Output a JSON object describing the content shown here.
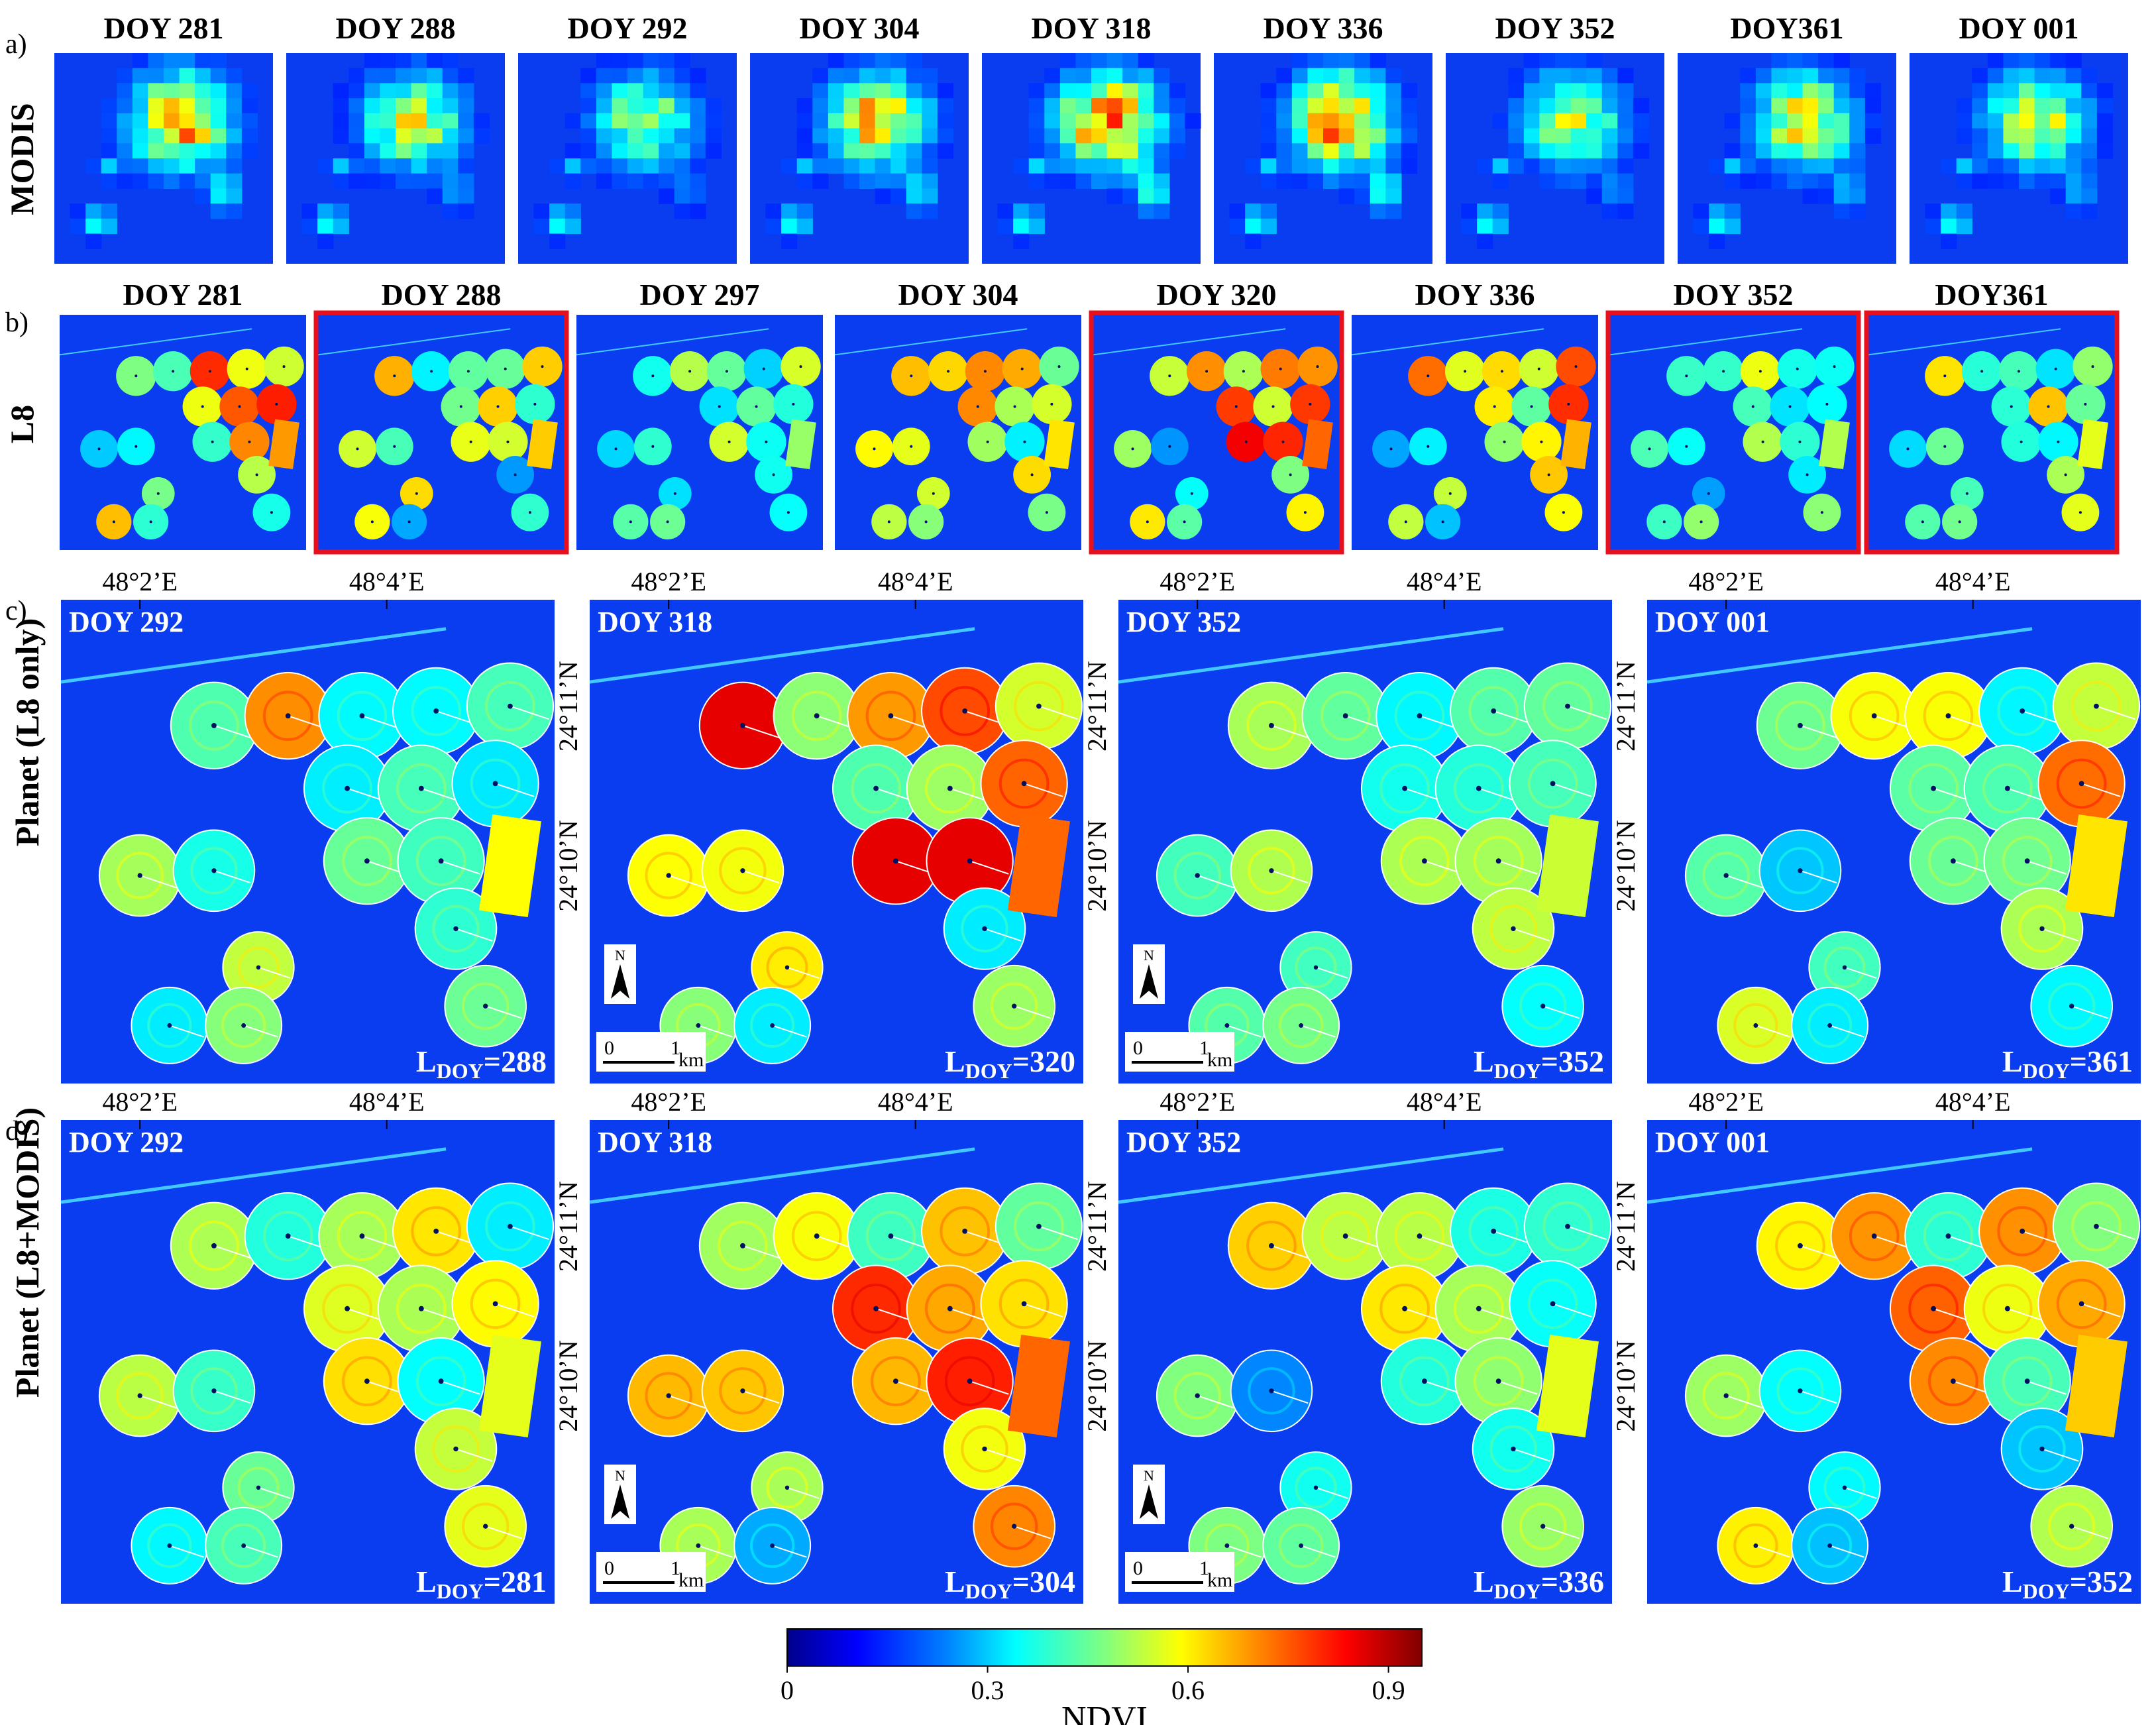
{
  "rows": {
    "a": {
      "label": "a)",
      "side_label": "MODIS",
      "panels": [
        {
          "title": "DOY 281",
          "highlighted": false,
          "intensity": 0.75
        },
        {
          "title": "DOY 288",
          "highlighted": false,
          "intensity": 0.45
        },
        {
          "title": "DOY 292",
          "highlighted": false,
          "intensity": 0.35
        },
        {
          "title": "DOY 304",
          "highlighted": false,
          "intensity": 0.7
        },
        {
          "title": "DOY 318",
          "highlighted": false,
          "intensity": 0.9
        },
        {
          "title": "DOY 336",
          "highlighted": false,
          "intensity": 0.85
        },
        {
          "title": "DOY 352",
          "highlighted": false,
          "intensity": 0.4
        },
        {
          "title": "DOY361",
          "highlighted": false,
          "intensity": 0.55
        },
        {
          "title": "DOY 001",
          "highlighted": false,
          "intensity": 0.5
        }
      ]
    },
    "b": {
      "label": "b)",
      "side_label": "L8",
      "panels": [
        {
          "title": "DOY 281",
          "highlighted": false,
          "intensity": 0.85
        },
        {
          "title": "DOY 288",
          "highlighted": true,
          "intensity": 0.75
        },
        {
          "title": "DOY 297",
          "highlighted": false,
          "intensity": 0.45
        },
        {
          "title": "DOY 304",
          "highlighted": false,
          "intensity": 0.7
        },
        {
          "title": "DOY 320",
          "highlighted": true,
          "intensity": 0.95
        },
        {
          "title": "DOY 336",
          "highlighted": false,
          "intensity": 0.8
        },
        {
          "title": "DOY 352",
          "highlighted": true,
          "intensity": 0.5
        },
        {
          "title": "DOY361",
          "highlighted": true,
          "intensity": 0.6
        }
      ]
    },
    "c": {
      "label": "c)",
      "side_label": "Planet (L8 only)",
      "panels": [
        {
          "title": "DOY 292",
          "l_value": "=288",
          "intensity": 0.65
        },
        {
          "title": "DOY 318",
          "l_value": "=320",
          "intensity": 0.95
        },
        {
          "title": "DOY 352",
          "l_value": "=352",
          "intensity": 0.55
        },
        {
          "title": "DOY 001",
          "l_value": "=361",
          "intensity": 0.7
        }
      ]
    },
    "d": {
      "label": "d)",
      "side_label": "Planet (L8+MODIS)",
      "panels": [
        {
          "title": "DOY 292",
          "l_value": "=281",
          "intensity": 0.6
        },
        {
          "title": "DOY 318",
          "l_value": "=304",
          "intensity": 0.95
        },
        {
          "title": "DOY 352",
          "l_value": "=336",
          "intensity": 0.6
        },
        {
          "title": "DOY 001",
          "l_value": "=352",
          "intensity": 0.75
        }
      ]
    }
  },
  "l_prefix": "L",
  "l_subscript": "DOY",
  "lon_labels": [
    "48°2’E",
    "48°4’E"
  ],
  "lat_labels": [
    "24°11’N",
    "24°10’N"
  ],
  "north_label": "N",
  "scale_bar": {
    "start": "0",
    "end": "1",
    "unit": "km"
  },
  "colorbar": {
    "title": "NDVI",
    "tick_labels": [
      "0",
      "0.3",
      "0.6",
      "0.9"
    ],
    "tick_values": [
      0,
      0.3,
      0.6,
      0.9
    ],
    "range": [
      0,
      0.95
    ]
  },
  "colors": {
    "background_blue": "#0a3cf0",
    "highlight_red": "#e8101c",
    "jet": [
      "#00008a",
      "#0000ff",
      "#0080ff",
      "#00ffff",
      "#80ff80",
      "#ffff00",
      "#ff8000",
      "#ff0000",
      "#800000"
    ]
  }
}
